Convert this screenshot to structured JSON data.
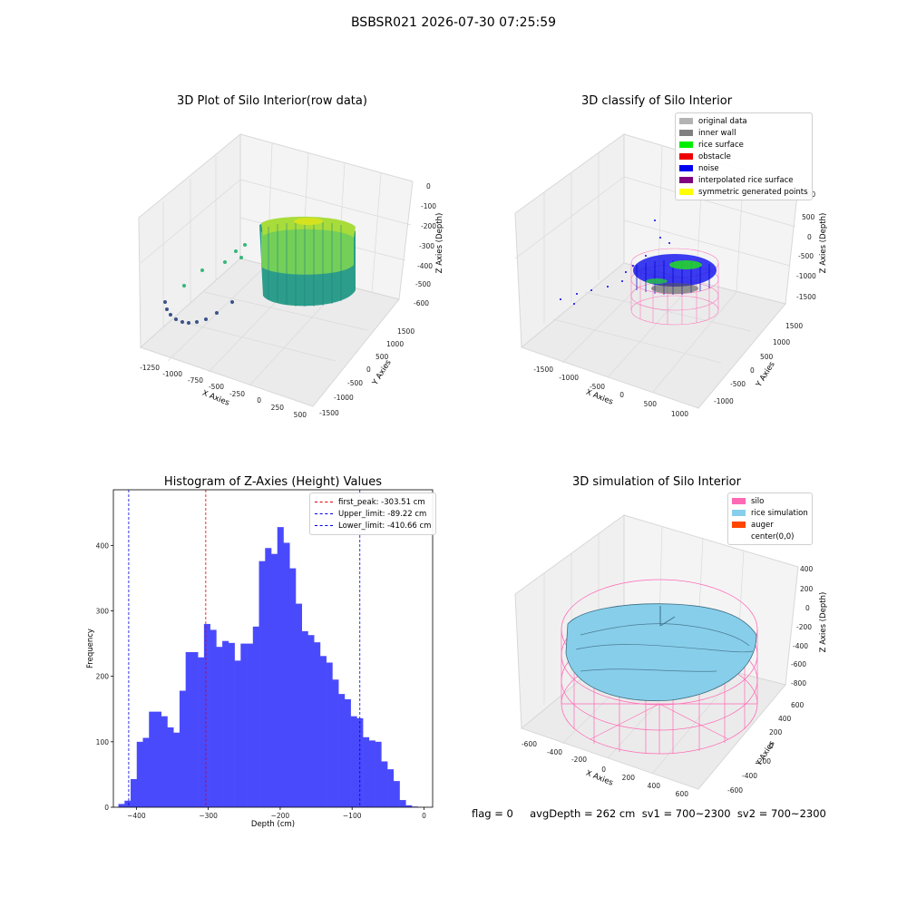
{
  "figure": {
    "title": "BSBSR021 2026-07-30 07:25:59",
    "footer": "flag = 0     avgDepth = 262 cm  sv1 = 700~2300  sv2 = 700~2300"
  },
  "panels": {
    "raw": {
      "title": "3D Plot of Silo Interior(row data)",
      "xlabel": "X Axies",
      "ylabel": "Y Axies",
      "zlabel": "Z Axies (Depth)",
      "xticks": [
        "-1250",
        "-1000",
        "-750",
        "-500",
        "-250",
        "0",
        "250",
        "500"
      ],
      "yticks": [
        "-1500",
        "-1000",
        "-500",
        "0",
        "500",
        "1000",
        "1500"
      ],
      "zticks": [
        "0",
        "-100",
        "-200",
        "-300",
        "-400",
        "-500",
        "-600"
      ]
    },
    "classify": {
      "title": "3D classify of Silo Interior",
      "xlabel": "X Axies",
      "ylabel": "Y Axies",
      "zlabel": "Z Axies (Depth)",
      "xticks": [
        "-1500",
        "-1000",
        "-500",
        "0",
        "500",
        "1000"
      ],
      "yticks": [
        "-1000",
        "-500",
        "0",
        "500",
        "1000",
        "1500"
      ],
      "zticks": [
        "1000",
        "500",
        "0",
        "-500",
        "-1000",
        "-1500"
      ],
      "legend": [
        {
          "label": "original data",
          "color": "#b3b3b3"
        },
        {
          "label": "inner wall",
          "color": "#808080"
        },
        {
          "label": "rice surface",
          "color": "#00ee00"
        },
        {
          "label": "obstacle",
          "color": "#ee0000"
        },
        {
          "label": "noise",
          "color": "#0000ee"
        },
        {
          "label": "interpolated rice surface",
          "color": "#800080"
        },
        {
          "label": "symmetric generated points",
          "color": "#ffff00"
        }
      ]
    },
    "simulation": {
      "title": "3D simulation of Silo Interior",
      "xlabel": "X Axies",
      "ylabel": "Y Axies",
      "zlabel": "Z Axies (Depth)",
      "xticks": [
        "-600",
        "-400",
        "-200",
        "0",
        "200",
        "400",
        "600"
      ],
      "yticks": [
        "-600",
        "-400",
        "-200",
        "0",
        "200",
        "400",
        "600"
      ],
      "zticks": [
        "400",
        "200",
        "0",
        "-200",
        "-400",
        "-600",
        "-800"
      ],
      "legend": [
        {
          "label": "silo",
          "color": "#ff69b4"
        },
        {
          "label": "rice simulation",
          "color": "#87ceeb"
        },
        {
          "label": "auger",
          "color": "#ff4500"
        },
        {
          "label": "center(0,0)",
          "color": "#ffffff"
        }
      ]
    }
  },
  "chart_data": {
    "type": "bar",
    "title": "Histogram of Z-Axies (Height) Values",
    "xlabel": "Depth (cm)",
    "ylabel": "Frequency",
    "xlim": [
      -432,
      12
    ],
    "ylim": [
      0,
      485
    ],
    "xticks": [
      -400,
      -300,
      -200,
      -100,
      0
    ],
    "yticks": [
      0,
      100,
      200,
      300,
      400
    ],
    "bin_start": -425,
    "bin_width": 8.5,
    "values": [
      5,
      10,
      43,
      100,
      106,
      146,
      146,
      139,
      122,
      114,
      178,
      237,
      237,
      229,
      280,
      271,
      245,
      254,
      251,
      224,
      250,
      250,
      276,
      376,
      396,
      387,
      428,
      404,
      365,
      311,
      269,
      263,
      252,
      231,
      221,
      195,
      173,
      165,
      139,
      136,
      107,
      102,
      100,
      70,
      58,
      40,
      11,
      3,
      1
    ],
    "color": "#4a4afd",
    "vlines": [
      {
        "label": "first_peak: -303.51 cm",
        "value": -303.51,
        "color": "#e00000"
      },
      {
        "label": "Upper_limit: -89.22 cm",
        "value": -89.22,
        "color": "#0000dd"
      },
      {
        "label": "Lower_limit: -410.66 cm",
        "value": -410.66,
        "color": "#0000dd"
      }
    ],
    "legend_position": "upper right"
  }
}
